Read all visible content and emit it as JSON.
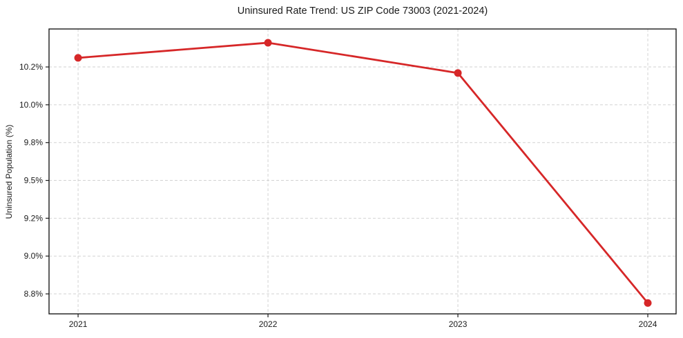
{
  "chart_data": {
    "type": "line",
    "title": "Uninsured Rate Trend: US ZIP Code 73003 (2021-2024)",
    "xlabel": "",
    "ylabel": "Uninsured Population (%)",
    "x": [
      2021,
      2022,
      2023,
      2024
    ],
    "x_tick_labels": [
      "2021",
      "2022",
      "2023",
      "2024"
    ],
    "values": [
      10.31,
      10.41,
      10.21,
      8.69
    ],
    "y_ticks": [
      8.75,
      9.0,
      9.25,
      9.5,
      9.75,
      10.0,
      10.25
    ],
    "y_tick_labels": [
      "8.8%",
      "9.0%",
      "9.2%",
      "9.5%",
      "9.8%",
      "10.0%",
      "10.2%"
    ],
    "xlim": [
      2020.847,
      2024.149
    ],
    "ylim": [
      8.618,
      10.501
    ],
    "grid": true,
    "legend": false,
    "colors": {
      "line": "#d62728",
      "marker": "#d62728",
      "grid": "#d2d2d2",
      "spine": "#1a1a1a",
      "tick": "#1a1a1a",
      "background": "#ffffff"
    },
    "marker": "circle"
  }
}
